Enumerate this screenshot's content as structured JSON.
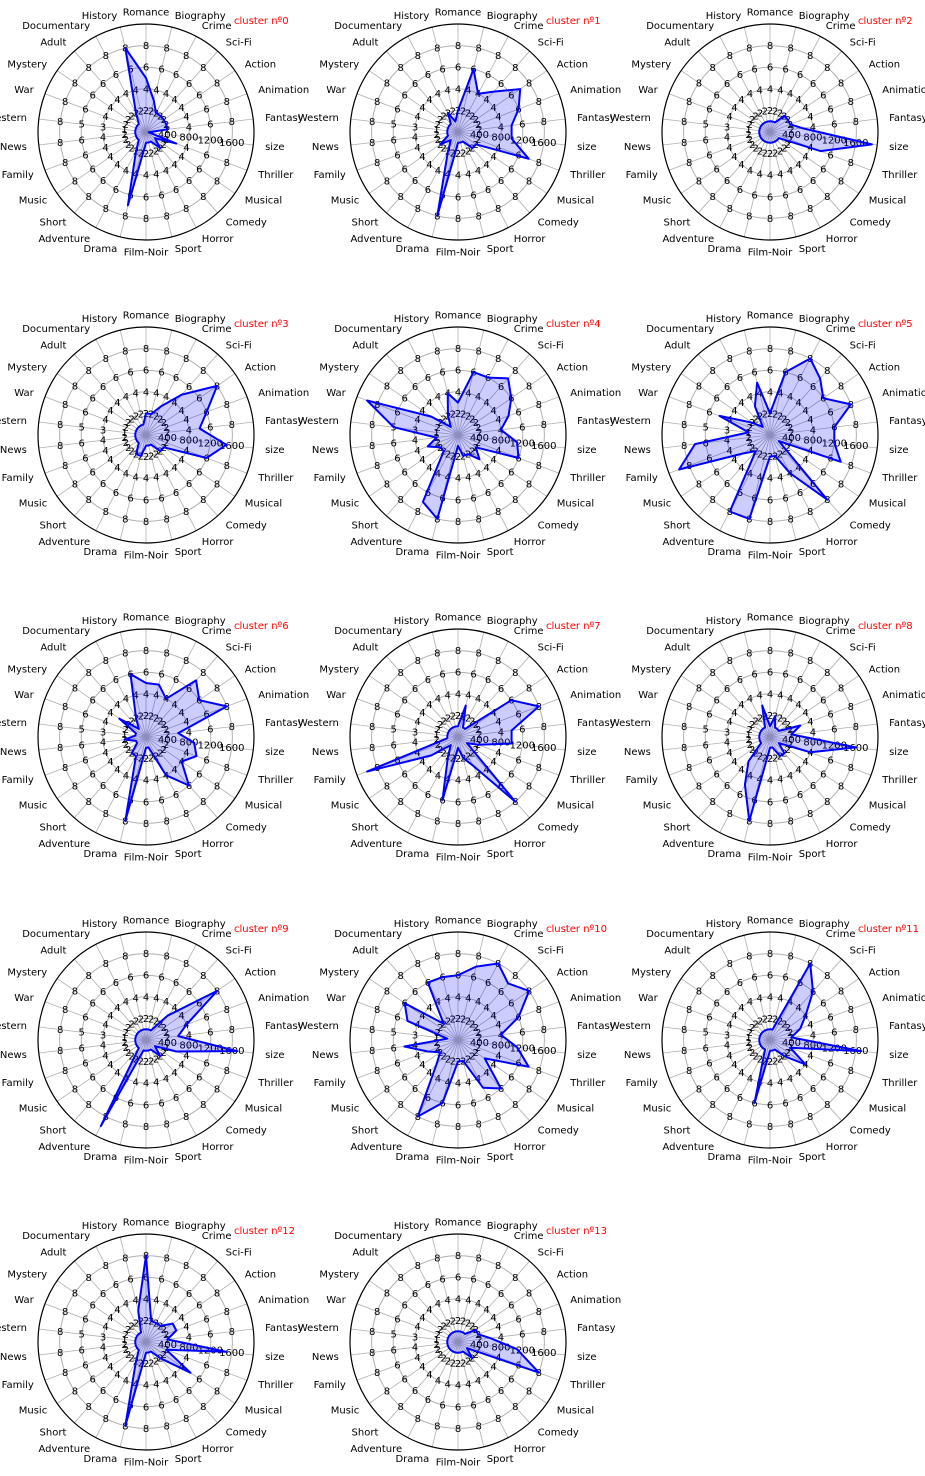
{
  "chart_data": {
    "type": "radar",
    "axes": [
      "Romance",
      "Biography",
      "Crime",
      "Sci-Fi",
      "Action",
      "Animation",
      "Fantasy",
      "size",
      "Thriller",
      "Musical",
      "Comedy",
      "Horror",
      "Sport",
      "Film-Noir",
      "Drama",
      "Adventure",
      "Short",
      "Music",
      "Family",
      "News",
      "Western",
      "War",
      "Mystery",
      "Adult",
      "Documentary",
      "History"
    ],
    "axis_max": [
      10,
      10,
      10,
      10,
      10,
      10,
      10,
      2000,
      10,
      10,
      10,
      10,
      10,
      10,
      10,
      10,
      10,
      10,
      10,
      10,
      10,
      10,
      10,
      10,
      10,
      10
    ],
    "tick_labels": [
      [
        "2",
        "4",
        "6",
        "8"
      ],
      [
        "2",
        "4",
        "6",
        "8"
      ],
      [
        "2",
        "4",
        "6",
        "8"
      ],
      [
        "2",
        "4",
        "6",
        "8"
      ],
      [
        "2",
        "4",
        "6",
        "8"
      ],
      [
        "2",
        "4",
        "6",
        "8"
      ],
      [
        "2",
        "4",
        "6",
        "8"
      ],
      [
        "400",
        "800",
        "1200",
        "1600"
      ],
      [
        "2",
        "4",
        "6",
        "8"
      ],
      [
        "2",
        "4",
        "6",
        "8"
      ],
      [
        "2",
        "4",
        "6",
        "8"
      ],
      [
        "2",
        "4",
        "6",
        "8"
      ],
      [
        "2",
        "4",
        "6",
        "8"
      ],
      [
        "2",
        "4",
        "6",
        "8"
      ],
      [
        "2",
        "4",
        "6",
        "8"
      ],
      [
        "2",
        "4",
        "6",
        "8"
      ],
      [
        "2",
        "4",
        "6",
        "8"
      ],
      [
        "2",
        "4",
        "6",
        "8"
      ],
      [
        "2",
        "4",
        "6",
        "8"
      ],
      [
        "2",
        "4",
        "6",
        "8"
      ],
      [
        "1",
        "3",
        "5",
        "8"
      ],
      [
        "2",
        "4",
        "6",
        "8"
      ],
      [
        "2",
        "4",
        "6",
        "8"
      ],
      [
        "2",
        "4",
        "6",
        "8"
      ],
      [
        "2",
        "4",
        "6",
        "8"
      ],
      [
        "2",
        "4",
        "6",
        "8"
      ]
    ],
    "title_prefix": "cluster nº",
    "colors": {
      "line": "#0000ff",
      "fill": "#0000ff",
      "title": "#ff0000",
      "grid": "#b0b0b0"
    },
    "panels": [
      {
        "title": "cluster nº0",
        "values": [
          5,
          3,
          2,
          2,
          2,
          2,
          2,
          50,
          3,
          1,
          2,
          1,
          1,
          1,
          7,
          2,
          1,
          1,
          1,
          1,
          1,
          1,
          1,
          1,
          2,
          8
        ]
      },
      {
        "title": "cluster nº1",
        "values": [
          2,
          6,
          4,
          5,
          7,
          6,
          5,
          1000,
          7,
          2,
          2,
          1,
          1,
          1,
          8,
          2,
          1,
          2,
          1,
          1,
          1,
          1,
          1,
          1,
          2,
          1
        ]
      },
      {
        "title": "cluster nº2",
        "values": [
          1,
          1,
          1,
          2,
          2,
          2,
          3,
          1900,
          5,
          1,
          1,
          1,
          1,
          1,
          1,
          1,
          1,
          1,
          1,
          1,
          1,
          1,
          1,
          1,
          1,
          1
        ]
      },
      {
        "title": "cluster nº3",
        "values": [
          2,
          2,
          3,
          5,
          8,
          6,
          5,
          1500,
          6,
          2,
          2,
          1,
          1,
          1,
          2,
          2,
          1,
          1,
          1,
          1,
          1,
          1,
          1,
          1,
          1,
          1
        ]
      },
      {
        "title": "cluster nº4",
        "values": [
          3,
          6,
          6,
          7,
          6,
          5,
          4,
          1100,
          6,
          2,
          3,
          2,
          2,
          1,
          8,
          7,
          2,
          2,
          3,
          2,
          6,
          9,
          3,
          1,
          2,
          4
        ]
      },
      {
        "title": "cluster nº5",
        "values": [
          2,
          6,
          8,
          7,
          6,
          8,
          6,
          1200,
          7,
          1,
          8,
          4,
          2,
          2,
          8,
          8,
          2,
          3,
          9,
          7,
          2,
          5,
          2,
          1,
          3,
          5
        ]
      },
      {
        "title": "cluster nº6",
        "values": [
          5,
          5,
          4,
          7,
          6,
          8,
          3,
          900,
          5,
          4,
          6,
          4,
          1,
          1,
          8,
          2,
          2,
          1,
          1,
          2,
          1,
          1,
          3,
          1,
          2,
          6
        ]
      },
      {
        "title": "cluster nº7",
        "values": [
          1,
          3,
          1,
          1,
          6,
          8,
          5,
          1000,
          2,
          1,
          8,
          3,
          2,
          1,
          6,
          2,
          1,
          3,
          9,
          1,
          1,
          1,
          1,
          1,
          1,
          1
        ]
      },
      {
        "title": "cluster nº8",
        "values": [
          1,
          2,
          1,
          1,
          1,
          3,
          2,
          1600,
          4,
          1,
          2,
          2,
          1,
          1,
          8,
          5,
          3,
          1,
          1,
          1,
          1,
          1,
          1,
          1,
          1,
          3
        ]
      },
      {
        "title": "cluster nº9",
        "values": [
          1,
          1,
          1,
          3,
          8,
          4,
          3,
          1700,
          3,
          1,
          2,
          1,
          1,
          1,
          1,
          9,
          1,
          1,
          1,
          1,
          1,
          1,
          1,
          1,
          1,
          1
        ]
      },
      {
        "title": "cluster nº10",
        "values": [
          6,
          7,
          8,
          7,
          8,
          6,
          4,
          1100,
          7,
          3,
          6,
          5,
          2,
          2,
          6,
          8,
          3,
          2,
          3,
          5,
          1,
          5,
          6,
          2,
          6,
          6
        ]
      },
      {
        "title": "cluster nº11",
        "values": [
          1,
          1,
          8,
          6,
          4,
          3,
          2,
          1700,
          2,
          4,
          2,
          1,
          1,
          1,
          6,
          1,
          1,
          1,
          1,
          1,
          1,
          1,
          1,
          1,
          1,
          1
        ]
      },
      {
        "title": "cluster nº12",
        "values": [
          8,
          2,
          2,
          2,
          3,
          3,
          2,
          1500,
          2,
          5,
          2,
          1,
          1,
          1,
          8,
          2,
          1,
          1,
          1,
          1,
          1,
          1,
          1,
          1,
          1,
          3
        ]
      },
      {
        "title": "cluster nº13",
        "values": [
          1,
          1,
          1,
          1,
          2,
          2,
          3,
          1100,
          8,
          1,
          2,
          1,
          1,
          1,
          1,
          1,
          1,
          1,
          1,
          1,
          1,
          1,
          1,
          1,
          1,
          1
        ]
      }
    ]
  }
}
